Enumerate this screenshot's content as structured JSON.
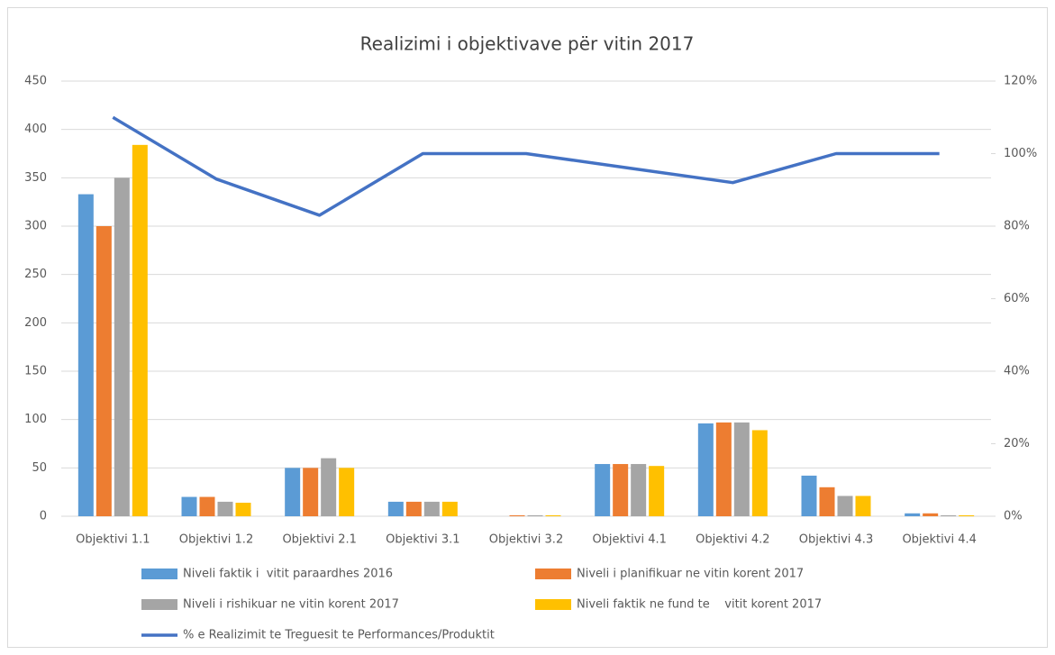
{
  "chart_data": {
    "type": "bar",
    "title": "Realizimi i objektivave për vitin 2017",
    "categories": [
      "Objektivi 1.1",
      "Objektivi 1.2",
      "Objektivi 2.1",
      "Objektivi 3.1",
      "Objektivi 3.2",
      "Objektivi 4.1",
      "Objektivi 4.2",
      "Objektivi 4.3",
      "Objektivi 4.4"
    ],
    "series": [
      {
        "name": "Niveli faktik i  vitit paraardhes 2016",
        "color": "#5b9bd5",
        "values": [
          333,
          20,
          50,
          15,
          0,
          54,
          96,
          42,
          3
        ]
      },
      {
        "name": "Niveli i planifikuar ne vitin korent 2017",
        "color": "#ed7d31",
        "values": [
          300,
          20,
          50,
          15,
          1,
          54,
          97,
          30,
          3
        ]
      },
      {
        "name": "Niveli i rishikuar ne vitin korent 2017",
        "color": "#a5a5a5",
        "values": [
          350,
          15,
          60,
          15,
          1,
          54,
          97,
          21,
          1
        ]
      },
      {
        "name": "Niveli faktik ne fund te    vitit korent 2017",
        "color": "#ffc000",
        "values": [
          384,
          14,
          50,
          15,
          1,
          52,
          89,
          21,
          1
        ]
      },
      {
        "name": "% e Realizimit te Treguesit te Performances/Produktit",
        "color": "#4472c4",
        "type": "line",
        "axis": "y2",
        "values": [
          110,
          93,
          83,
          100,
          100,
          96,
          92,
          100,
          100
        ]
      }
    ],
    "ylim": [
      0,
      450
    ],
    "yticks": [
      0,
      50,
      100,
      150,
      200,
      250,
      300,
      350,
      400,
      450
    ],
    "y2lim": [
      0,
      120
    ],
    "y2ticks": [
      {
        "value": 0,
        "label": "0%"
      },
      {
        "value": 20,
        "label": "20%"
      },
      {
        "value": 40,
        "label": "40%"
      },
      {
        "value": 60,
        "label": "60%"
      },
      {
        "value": 80,
        "label": "80%"
      },
      {
        "value": 100,
        "label": "100%"
      },
      {
        "value": 120,
        "label": "120%"
      }
    ],
    "grid": true,
    "legend": "bottom"
  }
}
